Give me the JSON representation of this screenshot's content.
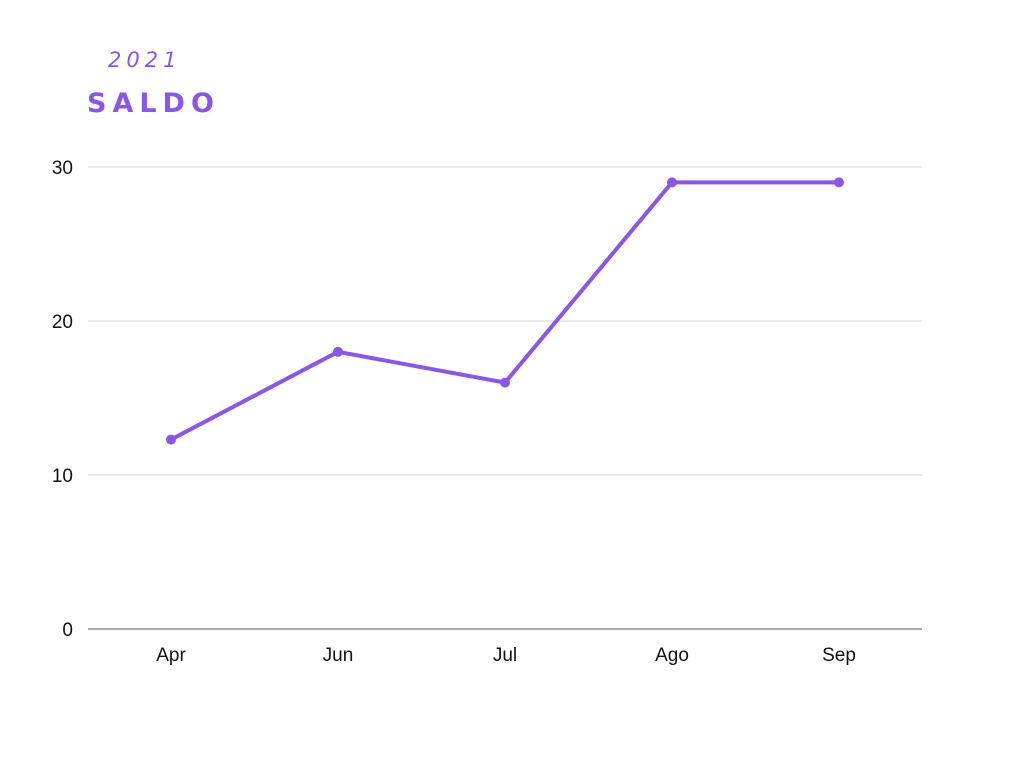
{
  "chart_data": {
    "type": "line",
    "subtitle": "2021",
    "title": "SALDO",
    "xlabel": "",
    "ylabel": "",
    "categories": [
      "Apr",
      "Jun",
      "Jul",
      "Ago",
      "Sep"
    ],
    "series": [
      {
        "values": [
          12.3,
          18,
          16,
          29,
          29
        ]
      }
    ],
    "ylim": [
      0,
      30
    ],
    "yticks": [
      0,
      10,
      20,
      30
    ],
    "grid": true,
    "legend": "none",
    "line_color": "#8b55e6",
    "grid_color": "#d4d4d4",
    "axis_color": "#777777"
  }
}
